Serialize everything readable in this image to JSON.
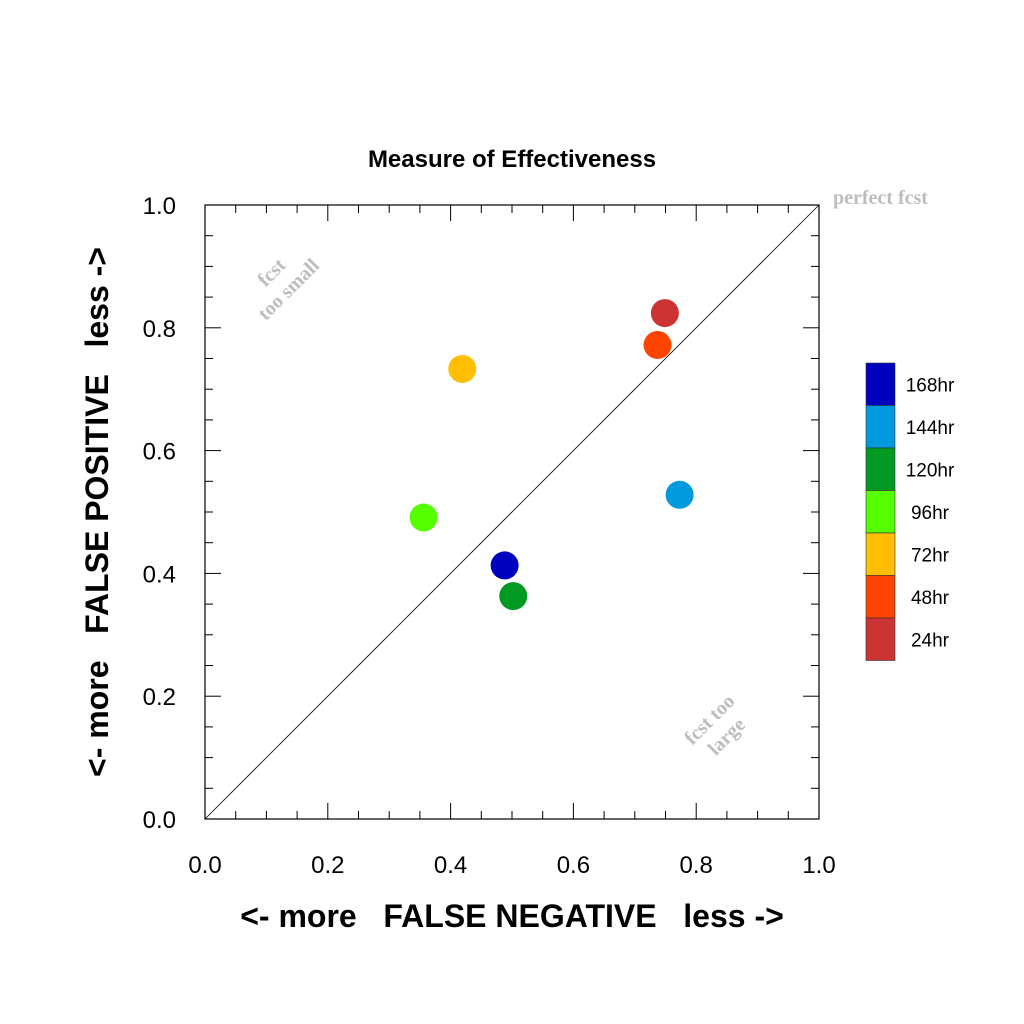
{
  "chart_data": {
    "type": "scatter",
    "title": "Measure of Effectiveness",
    "xlabel": "<- more   FALSE NEGATIVE   less ->",
    "ylabel": "<- more   FALSE POSITIVE   less ->",
    "xlim": [
      0.0,
      1.0
    ],
    "ylim": [
      0.0,
      1.0
    ],
    "xticks": [
      "0.0",
      "0.2",
      "0.4",
      "0.6",
      "0.8",
      "1.0"
    ],
    "yticks": [
      "0.0",
      "0.2",
      "0.4",
      "0.6",
      "0.8",
      "1.0"
    ],
    "grid": false,
    "diagonal_line": true,
    "annotations": {
      "perfect": "perfect fcst",
      "too_small": [
        "fcst",
        "too small"
      ],
      "too_large": [
        "fcst too",
        "large"
      ]
    },
    "legend_position": "right",
    "series": [
      {
        "name": "168hr",
        "color": "#0000c0",
        "x": 0.488,
        "y": 0.413
      },
      {
        "name": "144hr",
        "color": "#0099dd",
        "x": 0.773,
        "y": 0.528
      },
      {
        "name": "120hr",
        "color": "#009922",
        "x": 0.502,
        "y": 0.363
      },
      {
        "name": "96hr",
        "color": "#55ff00",
        "x": 0.356,
        "y": 0.491
      },
      {
        "name": "72hr",
        "color": "#ffbf00",
        "x": 0.419,
        "y": 0.733
      },
      {
        "name": "48hr",
        "color": "#ff4400",
        "x": 0.737,
        "y": 0.772
      },
      {
        "name": "24hr",
        "color": "#cc3333",
        "x": 0.749,
        "y": 0.824
      }
    ]
  }
}
